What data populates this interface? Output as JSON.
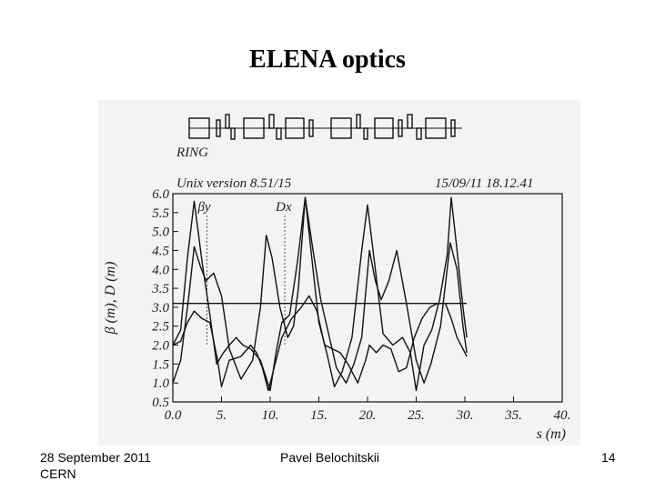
{
  "slide": {
    "title": "ELENA optics",
    "footer_date": "28 September 2011",
    "footer_org": "CERN",
    "footer_author": "Pavel Belochitskii",
    "page_number": "14"
  },
  "chart_data": {
    "type": "line",
    "lattice_label": "RING",
    "header_left": "Unix version 8.51/15",
    "header_right": "15/09/11  18.12.41",
    "ylabel": "β (m), D (m)",
    "xlabel": "s (m)",
    "xlim": [
      0,
      40
    ],
    "ylim": [
      0.5,
      6.0
    ],
    "x_ticks": [
      "0.0",
      "5.",
      "10.",
      "15.",
      "20.",
      "25.",
      "30.",
      "35.",
      "40."
    ],
    "y_ticks": [
      "0.5",
      "1.0",
      "1.5",
      "2.0",
      "2.5",
      "3.0",
      "3.5",
      "4.0",
      "4.5",
      "5.0",
      "5.5",
      "6.0"
    ],
    "annotations": [
      {
        "text": "βy",
        "x": 3.5
      },
      {
        "text": "Dx",
        "x": 11.5
      }
    ],
    "series": [
      {
        "x": [
          0.0,
          0.8,
          1.6,
          2.2,
          2.8,
          3.4,
          4.2,
          5.0,
          5.8,
          7.0,
          8.2,
          9.0,
          9.6,
          10.2,
          11.0,
          11.8,
          12.4,
          12.9,
          13.6,
          14.4,
          15.2,
          16.0,
          16.8,
          17.8,
          18.6,
          19.4,
          20.2,
          20.8,
          21.4,
          22.2,
          23.0,
          24.0,
          25.0,
          25.8,
          26.5,
          27.5,
          28.5,
          29.2,
          29.8,
          30.2
        ],
        "values": [
          1.0,
          1.6,
          3.2,
          4.6,
          4.1,
          3.7,
          3.9,
          3.3,
          1.9,
          1.1,
          1.6,
          3.0,
          4.9,
          4.3,
          3.0,
          2.2,
          2.5,
          3.5,
          5.9,
          4.5,
          3.2,
          2.3,
          1.4,
          1.0,
          1.5,
          2.2,
          4.5,
          3.7,
          3.2,
          3.7,
          4.5,
          3.1,
          1.6,
          1.0,
          1.5,
          2.5,
          4.7,
          4.0,
          2.5,
          1.8
        ]
      },
      {
        "x": [
          0.0,
          0.8,
          1.5,
          2.2,
          3.0,
          3.8,
          4.5,
          5.2,
          5.8,
          6.5,
          7.2,
          8.0,
          9.0,
          10.0,
          10.6,
          11.2,
          12.0,
          12.8,
          13.6,
          14.4,
          15.0,
          15.8,
          16.6,
          17.4,
          18.4,
          19.4,
          20.0,
          20.8,
          21.6,
          22.6,
          23.6,
          24.4,
          25.0,
          25.8,
          26.6,
          27.4,
          28.2,
          28.6,
          29.2,
          29.8,
          30.2
        ],
        "values": [
          2.0,
          2.4,
          4.3,
          5.8,
          4.2,
          2.8,
          1.5,
          1.8,
          2.0,
          2.2,
          2.0,
          1.9,
          1.6,
          0.8,
          1.8,
          2.6,
          2.8,
          4.2,
          5.9,
          4.0,
          2.6,
          1.8,
          0.9,
          1.3,
          2.2,
          4.5,
          5.7,
          4.0,
          2.3,
          2.0,
          2.2,
          1.8,
          0.8,
          2.0,
          2.4,
          3.2,
          4.4,
          5.9,
          4.5,
          3.0,
          2.2
        ]
      },
      {
        "x": [
          0.0,
          0.8,
          1.5,
          2.2,
          3.0,
          3.8,
          4.6,
          5.0,
          5.8,
          7.0,
          8.0,
          8.6,
          9.2,
          9.8,
          10.4,
          11.2,
          12.2,
          13.2,
          14.0,
          14.8,
          15.6,
          16.4,
          17.2,
          18.0,
          19.0,
          19.8,
          20.2,
          20.9,
          21.6,
          22.4,
          23.2,
          24.0,
          24.8,
          25.6,
          26.4,
          27.2,
          28.0,
          28.6,
          29.2,
          29.8,
          30.2
        ],
        "values": [
          2.0,
          2.1,
          2.6,
          2.9,
          2.7,
          2.6,
          1.6,
          0.9,
          1.6,
          1.7,
          2.0,
          1.8,
          1.4,
          0.8,
          1.4,
          2.2,
          2.7,
          3.0,
          3.3,
          2.9,
          2.0,
          1.9,
          1.8,
          1.5,
          1.0,
          1.6,
          2.0,
          1.8,
          2.0,
          1.9,
          1.3,
          1.4,
          2.2,
          2.7,
          3.0,
          3.1,
          3.1,
          2.7,
          2.2,
          1.9,
          1.7
        ]
      },
      {
        "x": [
          0.0,
          30.2
        ],
        "values": [
          3.1,
          3.1
        ]
      }
    ]
  }
}
